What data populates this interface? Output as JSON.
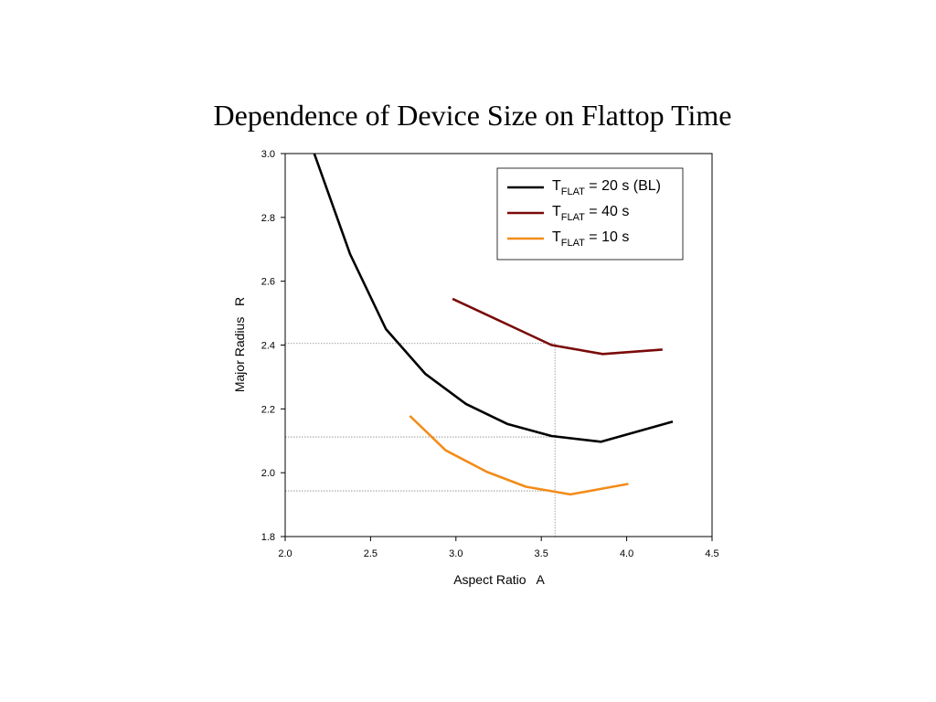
{
  "chart_data": {
    "type": "line",
    "title": "Dependence of Device Size on Flattop Time",
    "xlabel": "Aspect Ratio   A",
    "ylabel": "Major Radius   R",
    "xlim": [
      2.0,
      4.5
    ],
    "ylim": [
      1.8,
      3.0
    ],
    "xticks": [
      "2.0",
      "2.5",
      "3.0",
      "3.5",
      "4.0",
      "4.5"
    ],
    "yticks": [
      "1.8",
      "2.0",
      "2.2",
      "2.4",
      "2.6",
      "2.8",
      "3.0"
    ],
    "legend_position": "top-right",
    "grid": false,
    "series": [
      {
        "name_main": "T",
        "name_sub": "FLAT",
        "name_rest": " = 20 s (BL)",
        "color": "#000000",
        "x": [
          2.17,
          2.38,
          2.59,
          2.82,
          3.06,
          3.3,
          3.56,
          3.85,
          4.27
        ],
        "y": [
          3.0,
          2.685,
          2.45,
          2.31,
          2.215,
          2.153,
          2.115,
          2.097,
          2.16
        ]
      },
      {
        "name_main": "T",
        "name_sub": "FLAT",
        "name_rest": " = 40 s",
        "color": "#7a0a0a",
        "x": [
          2.98,
          3.18,
          3.36,
          3.56,
          3.86,
          4.21
        ],
        "y": [
          2.545,
          2.495,
          2.45,
          2.4,
          2.372,
          2.386
        ]
      },
      {
        "name_main": "T",
        "name_sub": "FLAT",
        "name_rest": " = 10 s",
        "color": "#f28c1a",
        "x": [
          2.73,
          2.94,
          3.18,
          3.41,
          3.67,
          4.01
        ],
        "y": [
          2.178,
          2.07,
          2.003,
          1.956,
          1.932,
          1.965
        ]
      }
    ],
    "reference_lines": {
      "vertical_x": 3.58,
      "horizontal_y": [
        2.405,
        2.112,
        1.943
      ]
    }
  }
}
